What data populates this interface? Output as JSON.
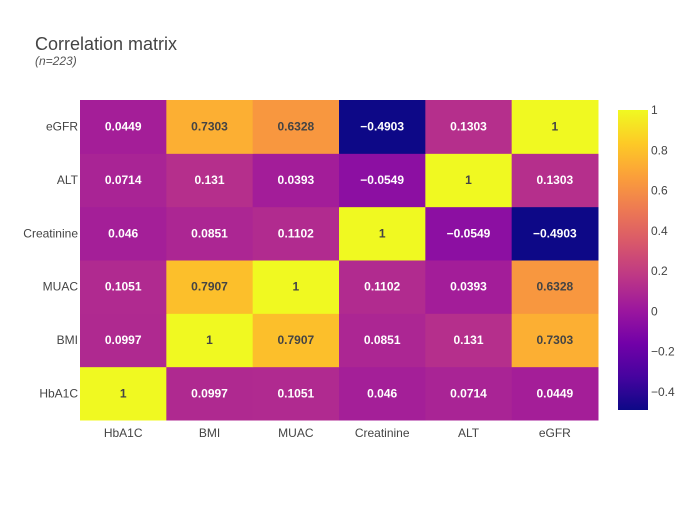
{
  "chart_data": {
    "type": "heatmap",
    "title": "Correlation matrix",
    "subtitle": "(n=223)",
    "x_categories": [
      "HbA1C",
      "BMI",
      "MUAC",
      "Creatinine",
      "ALT",
      "eGFR"
    ],
    "y_categories": [
      "HbA1C",
      "BMI",
      "MUAC",
      "Creatinine",
      "ALT",
      "eGFR"
    ],
    "values": [
      [
        1,
        0.0997,
        0.1051,
        0.046,
        0.0714,
        0.0449
      ],
      [
        0.0997,
        1,
        0.7907,
        0.0851,
        0.131,
        0.7303
      ],
      [
        0.1051,
        0.7907,
        1,
        0.1102,
        0.0393,
        0.6328
      ],
      [
        0.046,
        0.0851,
        0.1102,
        1,
        -0.0549,
        -0.4903
      ],
      [
        0.0714,
        0.131,
        0.0393,
        -0.0549,
        1,
        0.1303
      ],
      [
        0.0449,
        0.7303,
        0.6328,
        -0.4903,
        0.1303,
        1
      ]
    ],
    "text_labels": [
      [
        "1",
        "0.0997",
        "0.1051",
        "0.046",
        "0.0714",
        "0.0449"
      ],
      [
        "0.0997",
        "1",
        "0.7907",
        "0.0851",
        "0.131",
        "0.7303"
      ],
      [
        "0.1051",
        "0.7907",
        "1",
        "0.1102",
        "0.0393",
        "0.6328"
      ],
      [
        "0.046",
        "0.0851",
        "0.1102",
        "1",
        "−0.0549",
        "−0.4903"
      ],
      [
        "0.0714",
        "0.131",
        "0.0393",
        "−0.0549",
        "1",
        "0.1303"
      ],
      [
        "0.0449",
        "0.7303",
        "0.6328",
        "−0.4903",
        "0.1303",
        "1"
      ]
    ],
    "zrange": [
      -0.4903,
      1
    ],
    "colorscale": "plasma",
    "colorscale_stops": [
      "#0d0887",
      "#46039f",
      "#7201a8",
      "#9c179e",
      "#bd3786",
      "#d8576b",
      "#ed7953",
      "#fb9f3a",
      "#fdca26",
      "#f0f921"
    ],
    "colorbar_ticks": [
      {
        "value": 1,
        "label": "1"
      },
      {
        "value": 0.8,
        "label": "0.8"
      },
      {
        "value": 0.6,
        "label": "0.6"
      },
      {
        "value": 0.4,
        "label": "0.4"
      },
      {
        "value": 0.2,
        "label": "0.2"
      },
      {
        "value": 0,
        "label": "0"
      },
      {
        "value": -0.2,
        "label": "−0.2"
      },
      {
        "value": -0.4,
        "label": "−0.4"
      }
    ],
    "legend": "colorbar-right",
    "grid": false
  }
}
